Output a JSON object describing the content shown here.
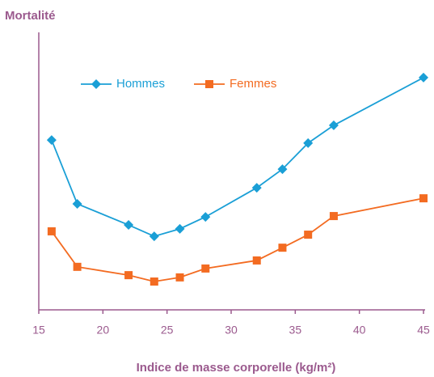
{
  "chart_data": {
    "type": "line",
    "title": "Mortalité",
    "x_label": "Indice de masse corporelle (kg/m²)",
    "x": [
      16,
      18,
      22,
      24,
      26,
      28,
      32,
      34,
      36,
      38,
      45
    ],
    "series": [
      {
        "name": "Hommes",
        "color": "#1a9fd6",
        "marker": "diamond",
        "values": [
          61.2,
          38.2,
          30.6,
          26.5,
          29.2,
          33.5,
          44.0,
          50.7,
          60.1,
          66.5,
          83.7
        ]
      },
      {
        "name": "Femmes",
        "color": "#f36b21",
        "marker": "square",
        "values": [
          28.3,
          15.5,
          12.5,
          10.2,
          11.7,
          14.9,
          17.8,
          22.4,
          27.1,
          33.8,
          40.2
        ]
      }
    ],
    "xlim": [
      15,
      45
    ],
    "xticks": [
      15,
      20,
      25,
      30,
      35,
      40,
      45
    ],
    "ylim": [
      0,
      100
    ],
    "axis_color": "#9b5a8e",
    "legend": "top-left"
  }
}
